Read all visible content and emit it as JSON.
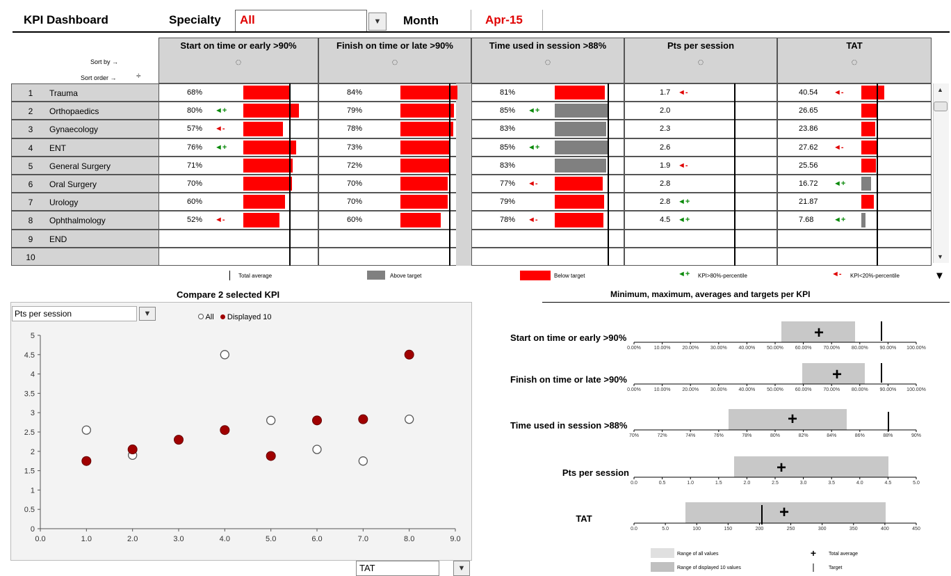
{
  "header": {
    "title": "KPI Dashboard",
    "specialty_label": "Specialty",
    "specialty_value": "All",
    "month_label": "Month",
    "month_value": "Apr-15"
  },
  "table": {
    "sort_by": "Sort by →",
    "sort_order": "Sort order →",
    "columns": [
      "Start on time or early >90%",
      "Finish on time or late >90%",
      "Time used in session >88%",
      "Pts per session",
      "TAT"
    ],
    "rows": [
      {
        "num": "1",
        "name": "Trauma",
        "c1": "68%",
        "c1a": "",
        "c2": "84%",
        "c3": "81%",
        "c3a": "",
        "c4": "1.7",
        "c4a": "red",
        "c5": "40.54",
        "c5a": "red"
      },
      {
        "num": "2",
        "name": "Orthopaedics",
        "c1": "80%",
        "c1a": "green",
        "c2": "79%",
        "c3": "85%",
        "c3a": "green",
        "c4": "2.0",
        "c4a": "",
        "c5": "26.65",
        "c5a": ""
      },
      {
        "num": "3",
        "name": "Gynaecology",
        "c1": "57%",
        "c1a": "red",
        "c2": "78%",
        "c3": "83%",
        "c3a": "",
        "c4": "2.3",
        "c4a": "",
        "c5": "23.86",
        "c5a": ""
      },
      {
        "num": "4",
        "name": "ENT",
        "c1": "76%",
        "c1a": "green",
        "c2": "73%",
        "c3": "85%",
        "c3a": "green",
        "c4": "2.6",
        "c4a": "",
        "c5": "27.62",
        "c5a": "red"
      },
      {
        "num": "5",
        "name": "General Surgery",
        "c1": "71%",
        "c1a": "",
        "c2": "72%",
        "c3": "83%",
        "c3a": "",
        "c4": "1.9",
        "c4a": "red",
        "c5": "25.56",
        "c5a": ""
      },
      {
        "num": "6",
        "name": "Oral Surgery",
        "c1": "70%",
        "c1a": "",
        "c2": "70%",
        "c3": "77%",
        "c3a": "red",
        "c4": "2.8",
        "c4a": "",
        "c5": "16.72",
        "c5a": "green"
      },
      {
        "num": "7",
        "name": "Urology",
        "c1": "60%",
        "c1a": "",
        "c2": "70%",
        "c3": "79%",
        "c3a": "",
        "c4": "2.8",
        "c4a": "green",
        "c5": "21.87",
        "c5a": ""
      },
      {
        "num": "8",
        "name": "Ophthalmology",
        "c1": "52%",
        "c1a": "red",
        "c2": "60%",
        "c3": "78%",
        "c3a": "red",
        "c4": "4.5",
        "c4a": "green",
        "c5": "7.68",
        "c5a": "green"
      },
      {
        "num": "9",
        "name": "END",
        "c1": "",
        "c1a": "",
        "c2": "",
        "c3": "",
        "c3a": "",
        "c4": "",
        "c4a": "",
        "c5": "",
        "c5a": ""
      },
      {
        "num": "10",
        "name": "",
        "c1": "",
        "c1a": "",
        "c2": "",
        "c3": "",
        "c3a": "",
        "c4": "",
        "c4a": "",
        "c5": "",
        "c5a": ""
      }
    ],
    "bars": {
      "c1": [
        {
          "v": 68,
          "t": "red"
        },
        {
          "v": 80,
          "t": "red"
        },
        {
          "v": 57,
          "t": "red"
        },
        {
          "v": 76,
          "t": "red"
        },
        {
          "v": 71,
          "t": "red"
        },
        {
          "v": 70,
          "t": "red"
        },
        {
          "v": 60,
          "t": "red"
        },
        {
          "v": 52,
          "t": "red"
        }
      ],
      "c2": [
        {
          "v": 84,
          "t": "red"
        },
        {
          "v": 79,
          "t": "red"
        },
        {
          "v": 78,
          "t": "red"
        },
        {
          "v": 73,
          "t": "red"
        },
        {
          "v": 72,
          "t": "red"
        },
        {
          "v": 70,
          "t": "red"
        },
        {
          "v": 70,
          "t": "red"
        },
        {
          "v": 60,
          "t": "red"
        }
      ],
      "c3": [
        {
          "v": 81,
          "t": "red"
        },
        {
          "v": 85,
          "t": "grey"
        },
        {
          "v": 83,
          "t": "grey"
        },
        {
          "v": 85,
          "t": "grey"
        },
        {
          "v": 83,
          "t": "grey"
        },
        {
          "v": 77,
          "t": "red"
        },
        {
          "v": 79,
          "t": "red"
        },
        {
          "v": 78,
          "t": "red"
        }
      ],
      "c5": [
        {
          "v": 40.54,
          "t": "red"
        },
        {
          "v": 26.65,
          "t": "red"
        },
        {
          "v": 23.86,
          "t": "red"
        },
        {
          "v": 27.62,
          "t": "red"
        },
        {
          "v": 25.56,
          "t": "red"
        },
        {
          "v": 16.72,
          "t": "grey"
        },
        {
          "v": 21.87,
          "t": "red"
        },
        {
          "v": 7.68,
          "t": "grey"
        }
      ]
    }
  },
  "legend": {
    "total_average": "Total average",
    "above_target": "Above target",
    "below_target": "Below target",
    "kpi_top": "KPI>80%-percentile",
    "kpi_bottom": "KPI<20%-percentile"
  },
  "scatter": {
    "title": "Compare 2 selected KPI",
    "y_select": "Pts per session",
    "x_select": "TAT",
    "legend_all": "All",
    "legend_displayed": "Displayed 10",
    "colors": {
      "displayed": "#a00000",
      "all": "#ffffff"
    }
  },
  "ranges": {
    "title": "Minimum, maximum, averages and targets per KPI",
    "kpis": [
      {
        "label": "Start on time or early >90%",
        "ticks": [
          "0.00%",
          "10.00%",
          "20.00%",
          "30.00%",
          "40.00%",
          "50.00%",
          "60.00%",
          "70.00%",
          "80.00%",
          "90.00%",
          "100.00%"
        ]
      },
      {
        "label": "Finish on time or late >90%",
        "ticks": [
          "0.00%",
          "10.00%",
          "20.00%",
          "30.00%",
          "40.00%",
          "50.00%",
          "60.00%",
          "70.00%",
          "80.00%",
          "90.00%",
          "100.00%"
        ]
      },
      {
        "label": "Time used in session >88%",
        "ticks": [
          "70%",
          "72%",
          "74%",
          "76%",
          "78%",
          "80%",
          "82%",
          "84%",
          "86%",
          "88%",
          "90%"
        ]
      },
      {
        "label": "Pts per session",
        "ticks": [
          "0.0",
          "0.5",
          "1.0",
          "1.5",
          "2.0",
          "2.5",
          "3.0",
          "3.5",
          "4.0",
          "4.5",
          "5.0"
        ]
      },
      {
        "label": "TAT",
        "ticks": [
          "0.0",
          "5.0",
          "100",
          "150",
          "200",
          "250",
          "300",
          "350",
          "400",
          "450"
        ]
      }
    ],
    "legend_all": "Range of all values",
    "legend_displayed": "Range of displayed 10 values",
    "legend_total": "Total average",
    "legend_target": "Target"
  },
  "chart_data": {
    "type": "scatter",
    "title": "Compare 2 selected KPI",
    "xlabel": "TAT",
    "ylabel": "Pts per session",
    "xlim": [
      0,
      9
    ],
    "ylim": [
      0,
      5
    ],
    "x_ticks": [
      "0.0",
      "1.0",
      "2.0",
      "3.0",
      "4.0",
      "5.0",
      "6.0",
      "7.0",
      "8.0",
      "9.0"
    ],
    "y_ticks": [
      "0",
      "0.5",
      "1",
      "1.5",
      "2",
      "2.5",
      "3",
      "3.5",
      "4",
      "4.5",
      "5"
    ],
    "series": [
      {
        "name": "All",
        "points": [
          [
            1,
            2.55
          ],
          [
            2,
            1.9
          ],
          [
            4,
            4.5
          ],
          [
            5,
            2.8
          ],
          [
            6,
            2.05
          ],
          [
            7,
            1.75
          ],
          [
            8,
            2.83
          ]
        ]
      },
      {
        "name": "Displayed 10",
        "points": [
          [
            1,
            1.75
          ],
          [
            2,
            2.05
          ],
          [
            3,
            2.3
          ],
          [
            4,
            2.55
          ],
          [
            5,
            1.88
          ],
          [
            6,
            2.8
          ],
          [
            7,
            2.83
          ],
          [
            8,
            4.5
          ]
        ]
      }
    ]
  }
}
